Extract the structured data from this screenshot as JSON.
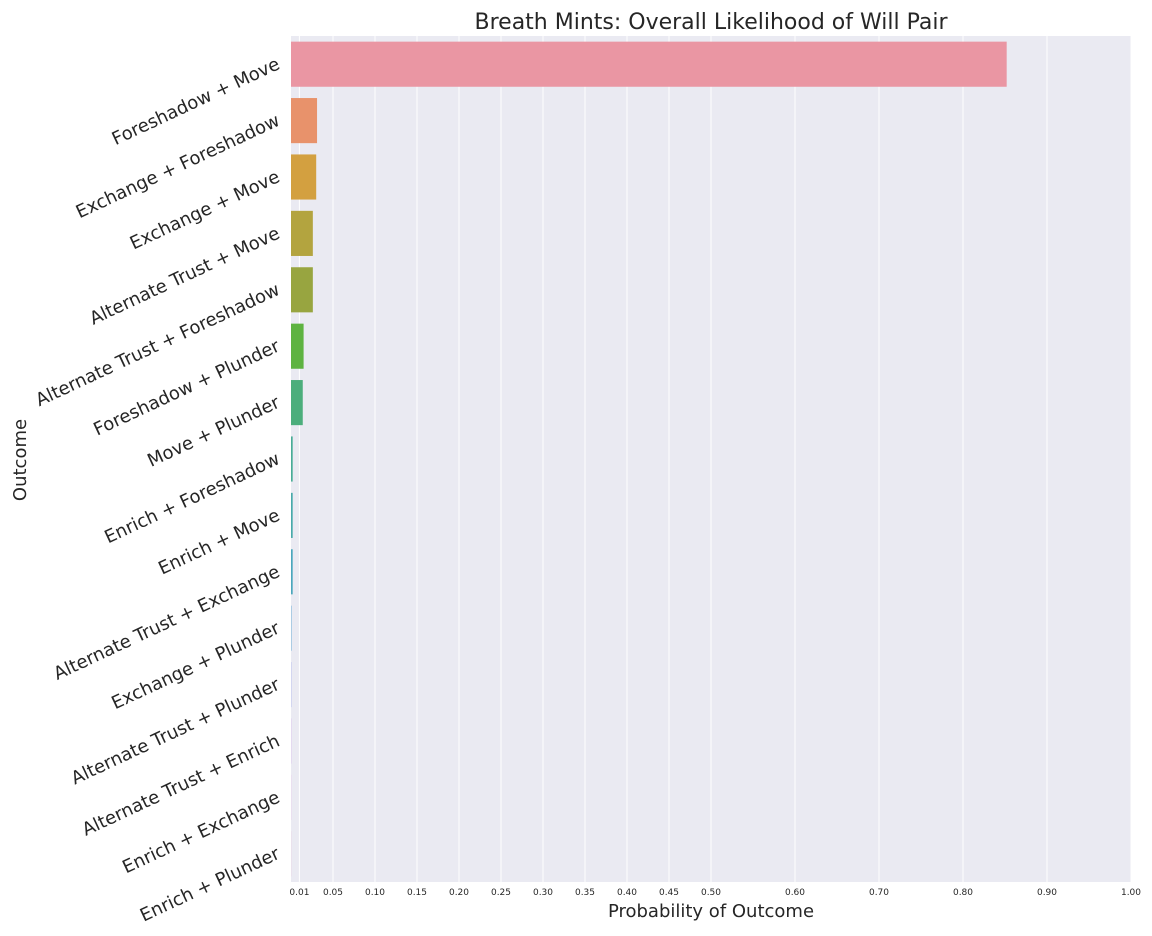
{
  "chart_data": {
    "type": "bar",
    "orientation": "horizontal",
    "title": "Breath Mints: Overall Likelihood of Will Pair",
    "xlabel": "Probability of Outcome",
    "ylabel": "Outcome",
    "xlim": [
      0,
      1.0
    ],
    "xticks": [
      0.01,
      0.05,
      0.1,
      0.15,
      0.2,
      0.25,
      0.3,
      0.35,
      0.4,
      0.45,
      0.5,
      0.6,
      0.7,
      0.8,
      0.9,
      1.0
    ],
    "xtick_labels": [
      "0.01",
      "0.05",
      "0.10",
      "0.15",
      "0.20",
      "0.25",
      "0.30",
      "0.35",
      "0.40",
      "0.45",
      "0.50",
      "0.60",
      "0.70",
      "0.80",
      "0.90",
      "1.00"
    ],
    "grid": true,
    "background": "#eaeaf2",
    "categories": [
      "Foreshadow + Move",
      "Exchange + Foreshadow",
      "Exchange + Move",
      "Alternate Trust + Move",
      "Alternate Trust + Foreshadow",
      "Foreshadow + Plunder",
      "Move + Plunder",
      "Enrich + Foreshadow",
      "Enrich + Move",
      "Alternate Trust + Exchange",
      "Exchange + Plunder",
      "Alternate Trust + Plunder",
      "Alternate Trust + Enrich",
      "Enrich + Exchange",
      "Enrich + Plunder"
    ],
    "values": [
      0.852,
      0.031,
      0.03,
      0.026,
      0.026,
      0.015,
      0.014,
      0.002,
      0.002,
      0.002,
      0.0005,
      0.0003,
      0.0002,
      0.0001,
      0.0001
    ],
    "colors": [
      "#ea96a3",
      "#e8926b",
      "#d3a040",
      "#b3a43f",
      "#98a540",
      "#5eb341",
      "#4cae7c",
      "#4aac97",
      "#49aaaa",
      "#4ba7bc",
      "#55a1d2",
      "#8d9ae7",
      "#c58be9",
      "#e47dd6",
      "#e88bb5"
    ]
  }
}
